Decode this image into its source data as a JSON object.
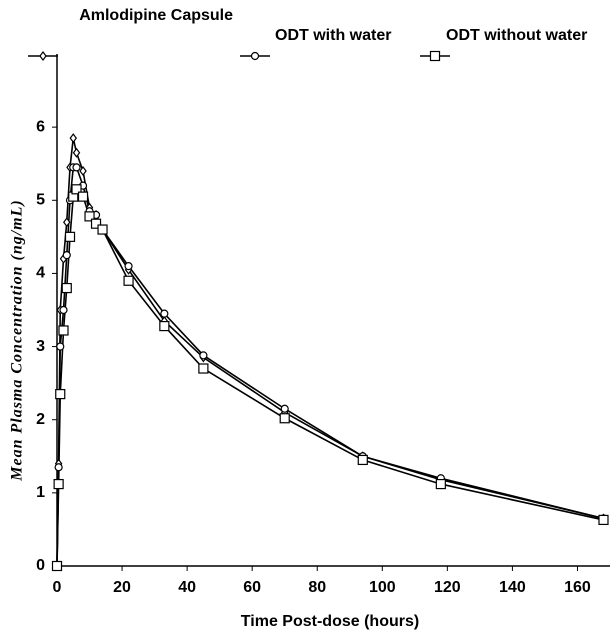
{
  "chart_data": {
    "type": "line",
    "x_label": "Time  Post-dose (hours)",
    "y_label": "Mean Plasma Concentration (ng/mL)",
    "x": [
      0,
      0.5,
      1,
      2,
      3,
      4,
      5,
      6,
      8,
      10,
      12,
      14,
      22,
      33,
      45,
      70,
      94,
      118,
      168
    ],
    "series": [
      {
        "name": "Amlodipine Capsule",
        "color": "#000000",
        "marker": "diamond",
        "values": [
          0,
          1.4,
          3.5,
          4.2,
          4.7,
          5.45,
          5.85,
          5.65,
          5.4,
          4.9,
          4.8,
          4.6,
          4.05,
          3.35,
          2.85,
          2.1,
          1.5,
          1.18,
          0.65
        ]
      },
      {
        "name": "ODT with water",
        "color": "#000000",
        "marker": "circle",
        "values": [
          0,
          1.35,
          3.0,
          3.5,
          4.25,
          5.0,
          5.45,
          5.45,
          5.2,
          4.85,
          4.8,
          4.6,
          4.1,
          3.45,
          2.88,
          2.15,
          1.5,
          1.2,
          0.65
        ]
      },
      {
        "name": "ODT without water",
        "color": "#000000",
        "marker": "square",
        "values": [
          0,
          1.12,
          2.35,
          3.22,
          3.8,
          4.5,
          5.05,
          5.15,
          5.05,
          4.78,
          4.68,
          4.6,
          3.9,
          3.28,
          2.7,
          2.02,
          1.45,
          1.12,
          0.63
        ]
      }
    ],
    "xlim": [
      0,
      170
    ],
    "xticks": [
      0,
      20,
      40,
      60,
      80,
      100,
      120,
      140,
      160
    ],
    "ylim": [
      0,
      7
    ],
    "yticks": [
      0,
      1,
      2,
      3,
      4,
      5,
      6
    ],
    "grid": false
  }
}
